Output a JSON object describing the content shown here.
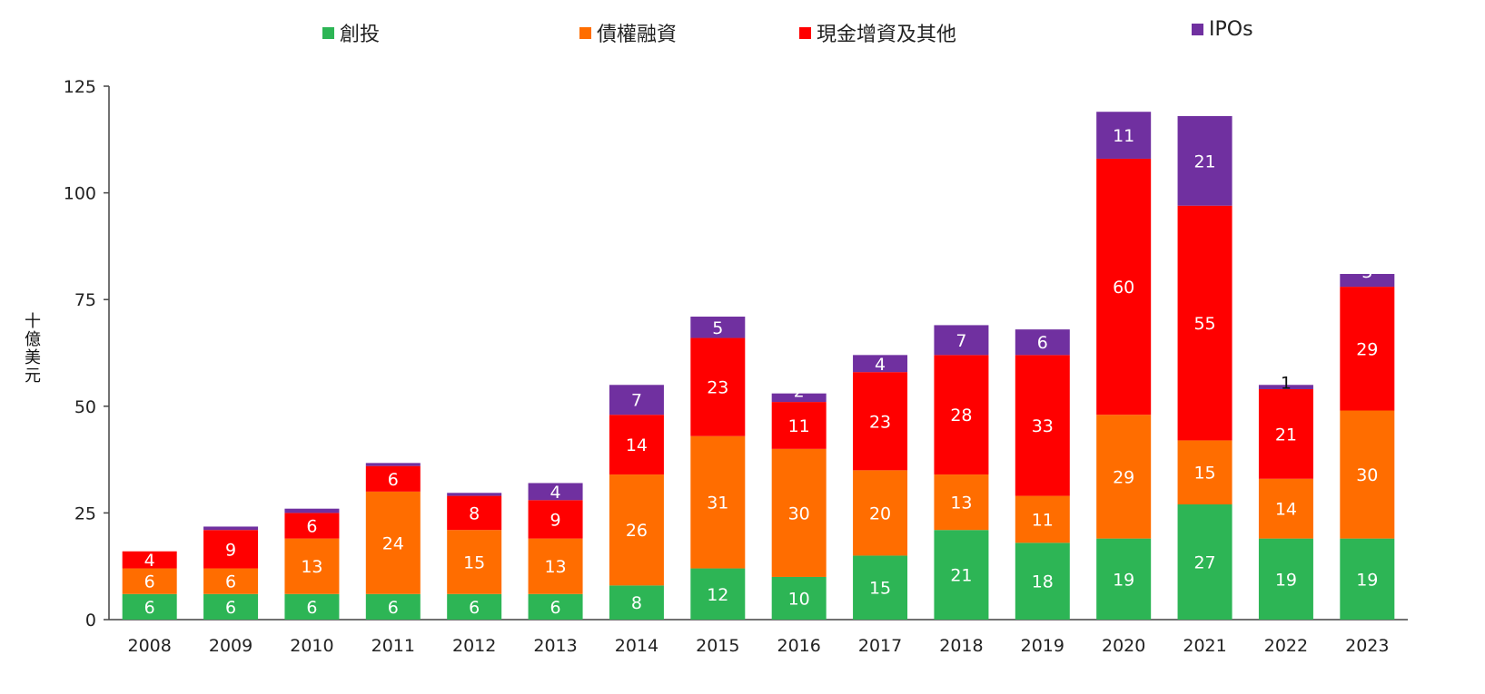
{
  "chart_data": {
    "type": "bar",
    "stacked": true,
    "title": "",
    "xlabel": "",
    "ylabel": "十億美元",
    "ylim": [
      0,
      125
    ],
    "yticks": [
      0,
      25,
      50,
      75,
      100,
      125
    ],
    "grid": false,
    "legend_position": "top",
    "categories": [
      "2008",
      "2009",
      "2010",
      "2011",
      "2012",
      "2013",
      "2014",
      "2015",
      "2016",
      "2017",
      "2018",
      "2019",
      "2020",
      "2021",
      "2022",
      "2023"
    ],
    "series": [
      {
        "name": "創投",
        "color": "#2db555",
        "values": [
          6,
          6,
          6,
          6,
          6,
          6,
          8,
          12,
          10,
          15,
          21,
          18,
          19,
          27,
          19,
          19
        ],
        "labels": [
          "6",
          "6",
          "6",
          "6",
          "6",
          "6",
          "8",
          "12",
          "10",
          "15",
          "21",
          "18",
          "19",
          "27",
          "19",
          "19"
        ]
      },
      {
        "name": "債權融資",
        "color": "#ff6d00",
        "values": [
          6,
          6,
          13,
          24,
          15,
          13,
          26,
          31,
          30,
          20,
          13,
          11,
          29,
          15,
          14,
          30
        ],
        "labels": [
          "6",
          "6",
          "13",
          "24",
          "15",
          "13",
          "26",
          "31",
          "30",
          "20",
          "13",
          "11",
          "29",
          "15",
          "14",
          "30"
        ]
      },
      {
        "name": "現金增資及其他",
        "color": "#ff0000",
        "values": [
          4,
          9,
          6,
          6,
          8,
          9,
          14,
          23,
          11,
          23,
          28,
          33,
          60,
          55,
          21,
          29
        ],
        "labels": [
          "4",
          "9",
          "6",
          "6",
          "8",
          "9",
          "14",
          "23",
          "11",
          "23",
          "28",
          "33",
          "60",
          "55",
          "21",
          "29"
        ]
      },
      {
        "name": "IPOs",
        "color": "#7030a0",
        "values": [
          0,
          0.8,
          1,
          0.7,
          0.7,
          4,
          7,
          5,
          2,
          4,
          7,
          6,
          11,
          21,
          1,
          3
        ],
        "labels": [
          "",
          "",
          "",
          "",
          "",
          "4",
          "7",
          "5",
          "2",
          "4",
          "7",
          "6",
          "11",
          "21",
          "1",
          "3"
        ]
      }
    ]
  }
}
